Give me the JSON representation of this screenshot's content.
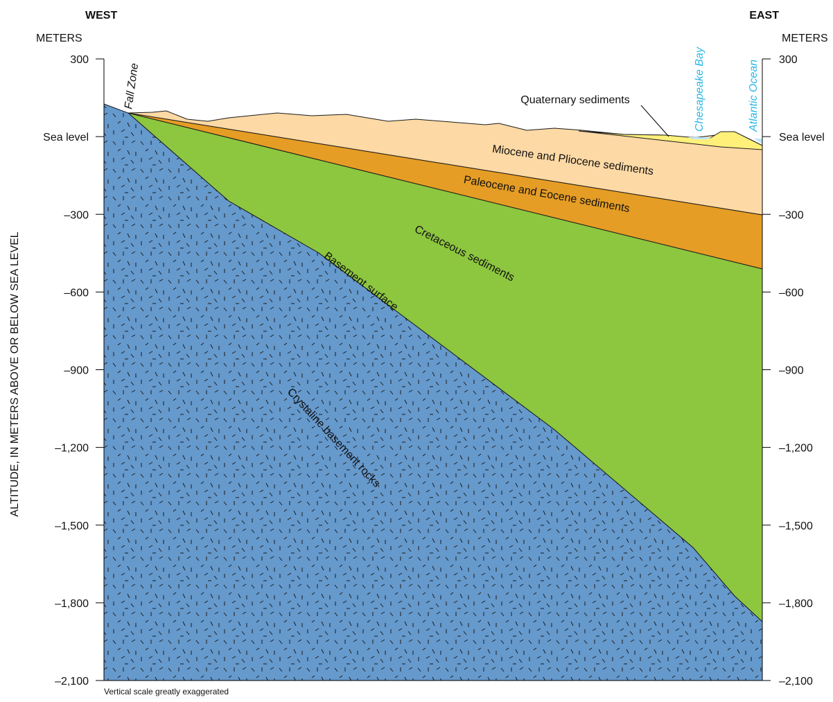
{
  "header": {
    "west": "WEST",
    "east": "EAST",
    "left_unit": "METERS",
    "right_unit": "METERS"
  },
  "axis": {
    "title": "ALTITUDE, IN METERS ABOVE OR BELOW SEA LEVEL",
    "range": [
      -2100,
      300
    ],
    "ticks": [
      {
        "value": 300,
        "label": "300"
      },
      {
        "value": 0,
        "label": "Sea level"
      },
      {
        "value": -300,
        "label": "–300"
      },
      {
        "value": -600,
        "label": "–600"
      },
      {
        "value": -900,
        "label": "–900"
      },
      {
        "value": -1200,
        "label": "–1,200"
      },
      {
        "value": -1500,
        "label": "–1,500"
      },
      {
        "value": -1800,
        "label": "–1,800"
      },
      {
        "value": -2100,
        "label": "–2,100"
      }
    ]
  },
  "labels": {
    "fall_zone": "Fall Zone",
    "chesapeake_bay": "Chesapeake Bay",
    "atlantic_ocean": "Atlantic Ocean",
    "quaternary": "Quaternary sediments",
    "miocene": "Miocene and Pliocene sediments",
    "paleocene": "Paleocene and Eocene sediments",
    "cretaceous": "Cretaceous sediments",
    "basement_surface": "Basement surface",
    "basement_rocks": "Crystaline basement rocks"
  },
  "note": "Vertical scale greatly exaggerated"
}
